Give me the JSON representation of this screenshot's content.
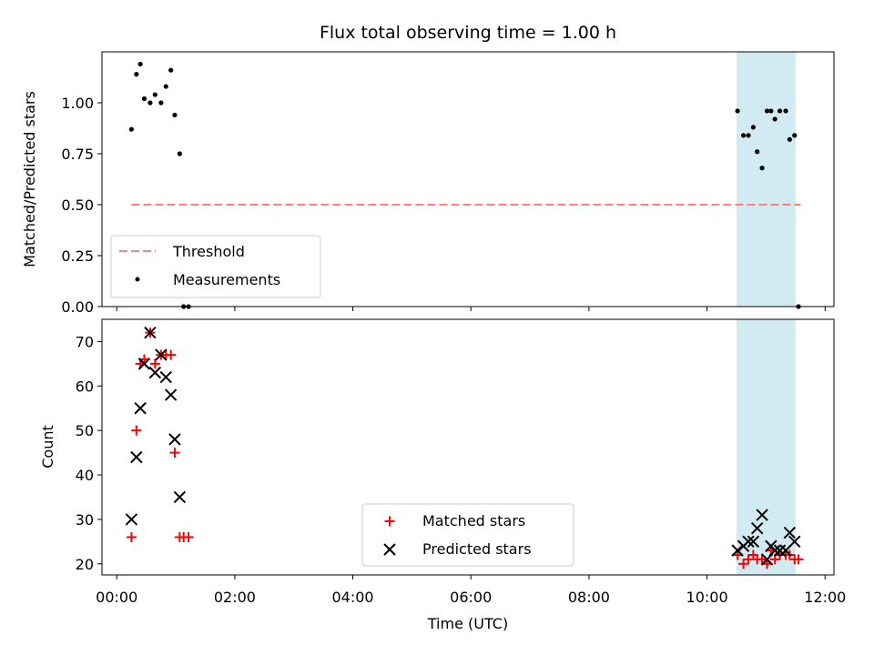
{
  "chart_data": [
    {
      "type": "scatter",
      "title": "Flux total observing time = 1.00 h",
      "xlabel": "",
      "ylabel": "Matched/Predicted stars",
      "ylim": [
        0,
        1.25
      ],
      "xlim_hours": [
        -0.25,
        12.15
      ],
      "yticks": [
        0.0,
        0.25,
        0.5,
        0.75,
        1.0
      ],
      "ytick_labels": [
        "0.00",
        "0.25",
        "0.50",
        "0.75",
        "1.00"
      ],
      "shaded_interval": {
        "from": "10:30",
        "to": "11:30",
        "color": "#add8e6"
      },
      "threshold": {
        "name": "Threshold",
        "y": 0.5,
        "from": "00:15",
        "to": "11:35",
        "color": "#ff7f7f",
        "style": "dashed"
      },
      "series": [
        {
          "name": "Measurements",
          "color": "#000000",
          "marker": "dot",
          "points": [
            {
              "x": "00:15",
              "y": 0.87
            },
            {
              "x": "00:20",
              "y": 1.14
            },
            {
              "x": "00:24",
              "y": 1.19
            },
            {
              "x": "00:28",
              "y": 1.02
            },
            {
              "x": "00:34",
              "y": 1.0
            },
            {
              "x": "00:39",
              "y": 1.04
            },
            {
              "x": "00:45",
              "y": 1.0
            },
            {
              "x": "00:50",
              "y": 1.08
            },
            {
              "x": "00:55",
              "y": 1.16
            },
            {
              "x": "00:59",
              "y": 0.94
            },
            {
              "x": "01:04",
              "y": 0.75
            },
            {
              "x": "01:08",
              "y": 0.0
            },
            {
              "x": "01:13",
              "y": 0.0
            },
            {
              "x": "10:31",
              "y": 0.96
            },
            {
              "x": "10:37",
              "y": 0.84
            },
            {
              "x": "10:42",
              "y": 0.84
            },
            {
              "x": "10:47",
              "y": 0.88
            },
            {
              "x": "10:51",
              "y": 0.76
            },
            {
              "x": "10:56",
              "y": 0.68
            },
            {
              "x": "11:01",
              "y": 0.96
            },
            {
              "x": "11:05",
              "y": 0.96
            },
            {
              "x": "11:09",
              "y": 0.92
            },
            {
              "x": "11:14",
              "y": 0.96
            },
            {
              "x": "11:20",
              "y": 0.96
            },
            {
              "x": "11:24",
              "y": 0.82
            },
            {
              "x": "11:29",
              "y": 0.84
            },
            {
              "x": "11:33",
              "y": 0.0
            }
          ]
        }
      ],
      "legend": {
        "placement": "lower-left",
        "entries": [
          "Threshold",
          "Measurements"
        ]
      }
    },
    {
      "type": "scatter",
      "title": "",
      "xlabel": "Time (UTC)",
      "ylabel": "Count",
      "ylim": [
        17.5,
        75
      ],
      "xlim_hours": [
        -0.25,
        12.15
      ],
      "yticks": [
        20,
        30,
        40,
        50,
        60,
        70
      ],
      "ytick_labels": [
        "20",
        "30",
        "40",
        "50",
        "60",
        "70"
      ],
      "xticks": [
        "00:00",
        "02:00",
        "04:00",
        "06:00",
        "08:00",
        "10:00",
        "12:00"
      ],
      "shaded_interval": {
        "from": "10:30",
        "to": "11:30",
        "color": "#add8e6"
      },
      "series": [
        {
          "name": "Matched stars",
          "color": "#ff0000",
          "marker": "plus",
          "points": [
            {
              "x": "00:15",
              "y": 26
            },
            {
              "x": "00:20",
              "y": 50
            },
            {
              "x": "00:24",
              "y": 65
            },
            {
              "x": "00:28",
              "y": 66
            },
            {
              "x": "00:34",
              "y": 72
            },
            {
              "x": "00:39",
              "y": 65
            },
            {
              "x": "00:45",
              "y": 67
            },
            {
              "x": "00:50",
              "y": 67
            },
            {
              "x": "00:55",
              "y": 67
            },
            {
              "x": "00:59",
              "y": 45
            },
            {
              "x": "01:04",
              "y": 26
            },
            {
              "x": "01:08",
              "y": 26
            },
            {
              "x": "01:13",
              "y": 26
            },
            {
              "x": "10:31",
              "y": 22
            },
            {
              "x": "10:37",
              "y": 20
            },
            {
              "x": "10:42",
              "y": 21
            },
            {
              "x": "10:47",
              "y": 22
            },
            {
              "x": "10:51",
              "y": 21
            },
            {
              "x": "10:56",
              "y": 21
            },
            {
              "x": "11:01",
              "y": 20
            },
            {
              "x": "11:05",
              "y": 23
            },
            {
              "x": "11:09",
              "y": 21
            },
            {
              "x": "11:14",
              "y": 22
            },
            {
              "x": "11:20",
              "y": 22
            },
            {
              "x": "11:24",
              "y": 22
            },
            {
              "x": "11:29",
              "y": 21
            },
            {
              "x": "11:33",
              "y": 21
            }
          ]
        },
        {
          "name": "Predicted stars",
          "color": "#000000",
          "marker": "x",
          "points": [
            {
              "x": "00:15",
              "y": 30
            },
            {
              "x": "00:20",
              "y": 44
            },
            {
              "x": "00:24",
              "y": 55
            },
            {
              "x": "00:28",
              "y": 65
            },
            {
              "x": "00:34",
              "y": 72
            },
            {
              "x": "00:39",
              "y": 63
            },
            {
              "x": "00:45",
              "y": 67
            },
            {
              "x": "00:50",
              "y": 62
            },
            {
              "x": "00:55",
              "y": 58
            },
            {
              "x": "00:59",
              "y": 48
            },
            {
              "x": "01:04",
              "y": 35
            },
            {
              "x": "10:31",
              "y": 23
            },
            {
              "x": "10:37",
              "y": 24
            },
            {
              "x": "10:42",
              "y": 25
            },
            {
              "x": "10:47",
              "y": 25
            },
            {
              "x": "10:51",
              "y": 28
            },
            {
              "x": "10:56",
              "y": 31
            },
            {
              "x": "11:01",
              "y": 21
            },
            {
              "x": "11:05",
              "y": 24
            },
            {
              "x": "11:09",
              "y": 23
            },
            {
              "x": "11:14",
              "y": 23
            },
            {
              "x": "11:20",
              "y": 23
            },
            {
              "x": "11:24",
              "y": 27
            },
            {
              "x": "11:29",
              "y": 25
            }
          ]
        }
      ],
      "legend": {
        "placement": "lower-center",
        "entries": [
          "Matched stars",
          "Predicted stars"
        ]
      }
    }
  ]
}
